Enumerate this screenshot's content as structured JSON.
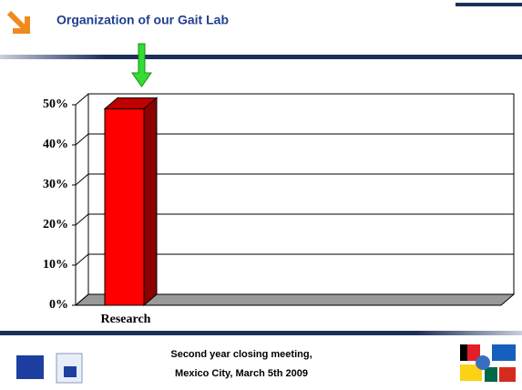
{
  "header": {
    "title": "Organization of our  Gait Lab"
  },
  "footer": {
    "line1": "Second year closing meeting,",
    "line2": "Mexico City,  March 5th  2009"
  },
  "chart_data": {
    "type": "bar",
    "categories": [
      "Research"
    ],
    "values": [
      49
    ],
    "color": "#ff0000",
    "ylim": [
      0,
      50
    ],
    "yticks": [
      {
        "value": 0,
        "label": "0%"
      },
      {
        "value": 10,
        "label": "10%"
      },
      {
        "value": 20,
        "label": "20%"
      },
      {
        "value": 30,
        "label": "30%"
      },
      {
        "value": 40,
        "label": "40%"
      },
      {
        "value": 50,
        "label": "50%"
      }
    ],
    "grid": true
  }
}
